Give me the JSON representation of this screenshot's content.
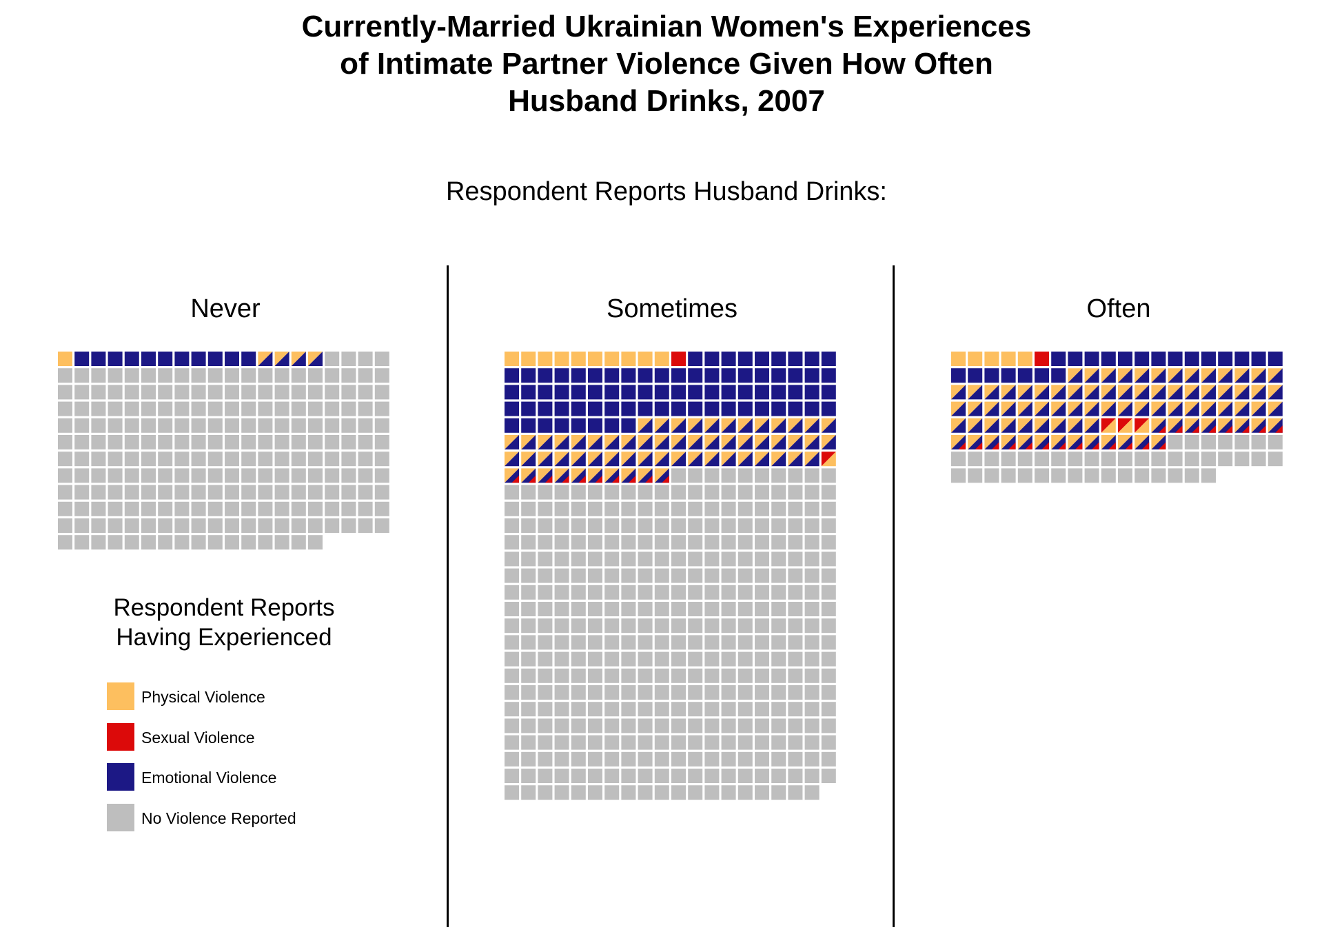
{
  "chart_data": {
    "type": "waffle",
    "title": "Currently-Married Ukrainian Women's Experiences of Intimate Partner Violence Given How Often Husband Drinks, 2007",
    "title_lines": [
      "Currently-Married Ukrainian Women's Experiences",
      "of Intimate Partner Violence Given How Often",
      "Husband Drinks, 2007"
    ],
    "subtitle": "Respondent Reports Husband Drinks:",
    "colors": {
      "physical": "#FDBF5F",
      "sexual": "#DC0A0A",
      "emotional": "#1C1885",
      "none": "#BEBEBE"
    },
    "columns_per_row": 20,
    "legend": {
      "title_lines": [
        "Respondent Reports",
        "Having Experienced"
      ],
      "items": [
        {
          "key": "physical",
          "label": "Physical Violence"
        },
        {
          "key": "sexual",
          "label": "Sexual Violence"
        },
        {
          "key": "emotional",
          "label": "Emotional Violence"
        },
        {
          "key": "none",
          "label": "No Violence Reported"
        }
      ]
    },
    "panels": [
      {
        "label": "Never",
        "counts": {
          "physical": 1,
          "sexual": 0,
          "emotional": 11,
          "physical_emotional": 4,
          "sexual_emotional": 0,
          "physical_sexual": 0,
          "physical_sexual_emotional": 0,
          "none": 220
        }
      },
      {
        "label": "Sometimes",
        "counts": {
          "physical": 10,
          "sexual": 1,
          "emotional": 77,
          "physical_emotional": 51,
          "sexual_emotional": 0,
          "physical_sexual": 1,
          "physical_sexual_emotional": 10,
          "none": 389
        }
      },
      {
        "label": "Often",
        "counts": {
          "physical": 5,
          "sexual": 1,
          "emotional": 21,
          "physical_emotional": 62,
          "sexual_emotional": 0,
          "physical_sexual": 3,
          "physical_sexual_emotional": 21,
          "none": 43
        }
      }
    ]
  }
}
